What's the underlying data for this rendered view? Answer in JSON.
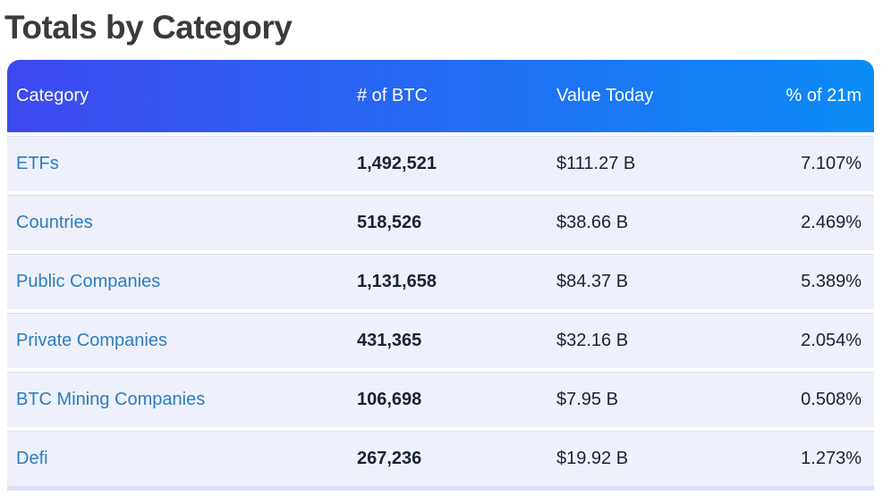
{
  "page": {
    "title": "Totals by Category"
  },
  "colors": {
    "header_gradient_start": "#3d49f0",
    "header_gradient_end": "#0b8cf6",
    "header_text": "#ffffff",
    "row_background": "#eef1fb",
    "row_divider": "#d9def2",
    "bottom_strip": "#dce1f6",
    "category_link": "#2d7dc1",
    "value_text": "#1a2235",
    "title_text": "#3b3b3b"
  },
  "table": {
    "columns": [
      {
        "label": "Category",
        "align": "left"
      },
      {
        "label": "# of BTC",
        "align": "left"
      },
      {
        "label": "Value Today",
        "align": "left"
      },
      {
        "label": "% of 21m",
        "align": "right"
      }
    ],
    "rows": [
      {
        "category": "ETFs",
        "btc": "1,492,521",
        "value": "$111.27 B",
        "pct": "7.107%"
      },
      {
        "category": "Countries",
        "btc": "518,526",
        "value": "$38.66 B",
        "pct": "2.469%"
      },
      {
        "category": "Public Companies",
        "btc": "1,131,658",
        "value": "$84.37 B",
        "pct": "5.389%"
      },
      {
        "category": "Private Companies",
        "btc": "431,365",
        "value": "$32.16 B",
        "pct": "2.054%"
      },
      {
        "category": "BTC Mining Companies",
        "btc": "106,698",
        "value": "$7.95 B",
        "pct": "0.508%"
      },
      {
        "category": "Defi",
        "btc": "267,236",
        "value": "$19.92 B",
        "pct": "1.273%"
      }
    ]
  }
}
